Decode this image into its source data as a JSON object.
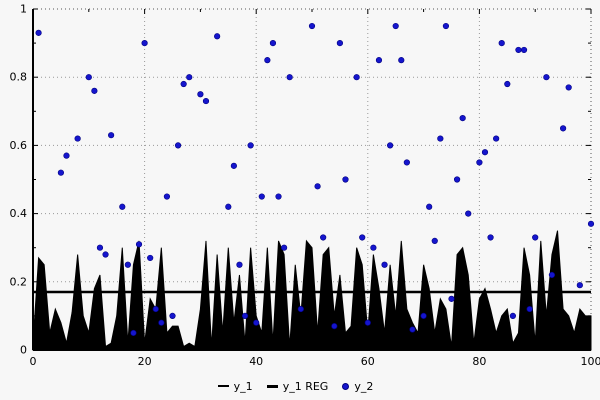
{
  "chart_data": {
    "type": "mixed",
    "title": "",
    "xlabel": "",
    "ylabel": "",
    "xlim": [
      0,
      100
    ],
    "ylim": [
      0,
      1
    ],
    "xticks": [
      0,
      20,
      40,
      60,
      80,
      100
    ],
    "yticks": [
      0,
      0.2,
      0.4,
      0.6,
      0.8,
      1
    ],
    "grid": "dotted",
    "legend_position": "bottom-center",
    "series": [
      {
        "name": "y_1",
        "type": "area",
        "color": "#000000",
        "x_start": 0,
        "x_step": 1,
        "values": [
          0.02,
          0.27,
          0.25,
          0.05,
          0.12,
          0.08,
          0.02,
          0.11,
          0.28,
          0.1,
          0.05,
          0.18,
          0.22,
          0.01,
          0.02,
          0.1,
          0.3,
          0.02,
          0.25,
          0.32,
          0.02,
          0.15,
          0.12,
          0.3,
          0.05,
          0.07,
          0.07,
          0.01,
          0.02,
          0.01,
          0.12,
          0.32,
          0.01,
          0.28,
          0.05,
          0.3,
          0.08,
          0.22,
          0.02,
          0.3,
          0.1,
          0.05,
          0.3,
          0.02,
          0.32,
          0.28,
          0.01,
          0.25,
          0.1,
          0.32,
          0.3,
          0.05,
          0.28,
          0.3,
          0.1,
          0.22,
          0.05,
          0.07,
          0.3,
          0.25,
          0.05,
          0.28,
          0.18,
          0.05,
          0.25,
          0.1,
          0.32,
          0.12,
          0.08,
          0.05,
          0.25,
          0.18,
          0.05,
          0.15,
          0.12,
          0.01,
          0.28,
          0.3,
          0.22,
          0.02,
          0.15,
          0.18,
          0.12,
          0.05,
          0.1,
          0.12,
          0.02,
          0.05,
          0.3,
          0.22,
          0.02,
          0.32,
          0.1,
          0.28,
          0.35,
          0.12,
          0.1,
          0.05,
          0.12,
          0.1,
          0.1
        ]
      },
      {
        "name": "y_1 REG",
        "type": "hline",
        "color": "#000000",
        "value": 0.17
      },
      {
        "name": "y_2",
        "type": "scatter",
        "color": "#1515cd",
        "points": [
          [
            1,
            0.93
          ],
          [
            5,
            0.52
          ],
          [
            6,
            0.57
          ],
          [
            8,
            0.62
          ],
          [
            10,
            0.8
          ],
          [
            11,
            0.76
          ],
          [
            12,
            0.3
          ],
          [
            13,
            0.28
          ],
          [
            14,
            0.63
          ],
          [
            16,
            0.42
          ],
          [
            17,
            0.25
          ],
          [
            18,
            0.05
          ],
          [
            19,
            0.31
          ],
          [
            20,
            0.9
          ],
          [
            21,
            0.27
          ],
          [
            22,
            0.12
          ],
          [
            23,
            0.08
          ],
          [
            24,
            0.45
          ],
          [
            25,
            0.1
          ],
          [
            26,
            0.6
          ],
          [
            27,
            0.78
          ],
          [
            28,
            0.8
          ],
          [
            30,
            0.75
          ],
          [
            31,
            0.73
          ],
          [
            33,
            0.92
          ],
          [
            35,
            0.42
          ],
          [
            36,
            0.54
          ],
          [
            37,
            0.25
          ],
          [
            38,
            0.1
          ],
          [
            39,
            0.6
          ],
          [
            40,
            0.08
          ],
          [
            41,
            0.45
          ],
          [
            42,
            0.85
          ],
          [
            43,
            0.9
          ],
          [
            44,
            0.45
          ],
          [
            45,
            0.3
          ],
          [
            46,
            0.8
          ],
          [
            48,
            0.12
          ],
          [
            50,
            0.95
          ],
          [
            51,
            0.48
          ],
          [
            52,
            0.33
          ],
          [
            54,
            0.07
          ],
          [
            55,
            0.9
          ],
          [
            56,
            0.5
          ],
          [
            58,
            0.8
          ],
          [
            59,
            0.33
          ],
          [
            60,
            0.08
          ],
          [
            61,
            0.3
          ],
          [
            62,
            0.85
          ],
          [
            63,
            0.25
          ],
          [
            64,
            0.6
          ],
          [
            65,
            0.95
          ],
          [
            66,
            0.85
          ],
          [
            67,
            0.55
          ],
          [
            68,
            0.06
          ],
          [
            70,
            0.1
          ],
          [
            71,
            0.42
          ],
          [
            72,
            0.32
          ],
          [
            73,
            0.62
          ],
          [
            74,
            0.95
          ],
          [
            75,
            0.15
          ],
          [
            76,
            0.5
          ],
          [
            77,
            0.68
          ],
          [
            78,
            0.4
          ],
          [
            80,
            0.55
          ],
          [
            81,
            0.58
          ],
          [
            82,
            0.33
          ],
          [
            83,
            0.62
          ],
          [
            84,
            0.9
          ],
          [
            85,
            0.78
          ],
          [
            86,
            0.1
          ],
          [
            87,
            0.88
          ],
          [
            88,
            0.88
          ],
          [
            89,
            0.12
          ],
          [
            90,
            0.33
          ],
          [
            92,
            0.8
          ],
          [
            93,
            0.22
          ],
          [
            95,
            0.65
          ],
          [
            96,
            0.77
          ],
          [
            98,
            0.19
          ],
          [
            100,
            0.37
          ]
        ]
      }
    ]
  },
  "colors": {
    "background": "#f7f7f7",
    "grid": "#999999",
    "axis": "#000000",
    "border_dotted": "#555555",
    "area": "#000000",
    "scatter": "#1515cd"
  }
}
